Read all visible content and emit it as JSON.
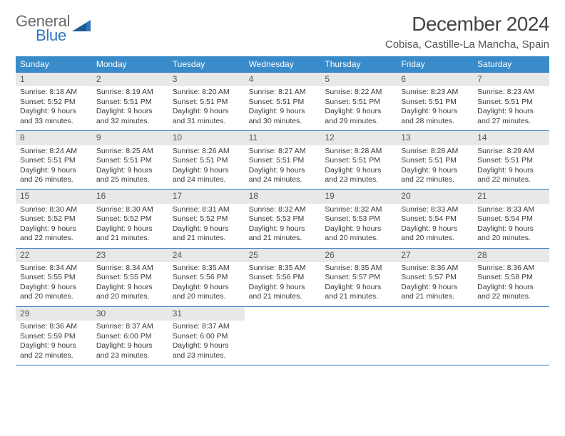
{
  "brand": {
    "word1": "General",
    "word2": "Blue"
  },
  "title": "December 2024",
  "location": "Cobisa, Castille-La Mancha, Spain",
  "colors": {
    "header_bg": "#3a8bc9",
    "header_text": "#ffffff",
    "rule": "#2f77bc",
    "daynum_bg": "#e8e8e8",
    "text": "#3a3a3a",
    "logo_blue": "#2f77bc",
    "logo_gray": "#6b6b6b"
  },
  "weekdays": [
    "Sunday",
    "Monday",
    "Tuesday",
    "Wednesday",
    "Thursday",
    "Friday",
    "Saturday"
  ],
  "weeks": [
    [
      {
        "n": "1",
        "sr": "8:18 AM",
        "ss": "5:52 PM",
        "dl": "9 hours and 33 minutes."
      },
      {
        "n": "2",
        "sr": "8:19 AM",
        "ss": "5:51 PM",
        "dl": "9 hours and 32 minutes."
      },
      {
        "n": "3",
        "sr": "8:20 AM",
        "ss": "5:51 PM",
        "dl": "9 hours and 31 minutes."
      },
      {
        "n": "4",
        "sr": "8:21 AM",
        "ss": "5:51 PM",
        "dl": "9 hours and 30 minutes."
      },
      {
        "n": "5",
        "sr": "8:22 AM",
        "ss": "5:51 PM",
        "dl": "9 hours and 29 minutes."
      },
      {
        "n": "6",
        "sr": "8:23 AM",
        "ss": "5:51 PM",
        "dl": "9 hours and 28 minutes."
      },
      {
        "n": "7",
        "sr": "8:23 AM",
        "ss": "5:51 PM",
        "dl": "9 hours and 27 minutes."
      }
    ],
    [
      {
        "n": "8",
        "sr": "8:24 AM",
        "ss": "5:51 PM",
        "dl": "9 hours and 26 minutes."
      },
      {
        "n": "9",
        "sr": "8:25 AM",
        "ss": "5:51 PM",
        "dl": "9 hours and 25 minutes."
      },
      {
        "n": "10",
        "sr": "8:26 AM",
        "ss": "5:51 PM",
        "dl": "9 hours and 24 minutes."
      },
      {
        "n": "11",
        "sr": "8:27 AM",
        "ss": "5:51 PM",
        "dl": "9 hours and 24 minutes."
      },
      {
        "n": "12",
        "sr": "8:28 AM",
        "ss": "5:51 PM",
        "dl": "9 hours and 23 minutes."
      },
      {
        "n": "13",
        "sr": "8:28 AM",
        "ss": "5:51 PM",
        "dl": "9 hours and 22 minutes."
      },
      {
        "n": "14",
        "sr": "8:29 AM",
        "ss": "5:51 PM",
        "dl": "9 hours and 22 minutes."
      }
    ],
    [
      {
        "n": "15",
        "sr": "8:30 AM",
        "ss": "5:52 PM",
        "dl": "9 hours and 22 minutes."
      },
      {
        "n": "16",
        "sr": "8:30 AM",
        "ss": "5:52 PM",
        "dl": "9 hours and 21 minutes."
      },
      {
        "n": "17",
        "sr": "8:31 AM",
        "ss": "5:52 PM",
        "dl": "9 hours and 21 minutes."
      },
      {
        "n": "18",
        "sr": "8:32 AM",
        "ss": "5:53 PM",
        "dl": "9 hours and 21 minutes."
      },
      {
        "n": "19",
        "sr": "8:32 AM",
        "ss": "5:53 PM",
        "dl": "9 hours and 20 minutes."
      },
      {
        "n": "20",
        "sr": "8:33 AM",
        "ss": "5:54 PM",
        "dl": "9 hours and 20 minutes."
      },
      {
        "n": "21",
        "sr": "8:33 AM",
        "ss": "5:54 PM",
        "dl": "9 hours and 20 minutes."
      }
    ],
    [
      {
        "n": "22",
        "sr": "8:34 AM",
        "ss": "5:55 PM",
        "dl": "9 hours and 20 minutes."
      },
      {
        "n": "23",
        "sr": "8:34 AM",
        "ss": "5:55 PM",
        "dl": "9 hours and 20 minutes."
      },
      {
        "n": "24",
        "sr": "8:35 AM",
        "ss": "5:56 PM",
        "dl": "9 hours and 20 minutes."
      },
      {
        "n": "25",
        "sr": "8:35 AM",
        "ss": "5:56 PM",
        "dl": "9 hours and 21 minutes."
      },
      {
        "n": "26",
        "sr": "8:35 AM",
        "ss": "5:57 PM",
        "dl": "9 hours and 21 minutes."
      },
      {
        "n": "27",
        "sr": "8:36 AM",
        "ss": "5:57 PM",
        "dl": "9 hours and 21 minutes."
      },
      {
        "n": "28",
        "sr": "8:36 AM",
        "ss": "5:58 PM",
        "dl": "9 hours and 22 minutes."
      }
    ],
    [
      {
        "n": "29",
        "sr": "8:36 AM",
        "ss": "5:59 PM",
        "dl": "9 hours and 22 minutes."
      },
      {
        "n": "30",
        "sr": "8:37 AM",
        "ss": "6:00 PM",
        "dl": "9 hours and 23 minutes."
      },
      {
        "n": "31",
        "sr": "8:37 AM",
        "ss": "6:00 PM",
        "dl": "9 hours and 23 minutes."
      },
      null,
      null,
      null,
      null
    ]
  ],
  "labels": {
    "sunrise": "Sunrise: ",
    "sunset": "Sunset: ",
    "daylight": "Daylight: "
  }
}
